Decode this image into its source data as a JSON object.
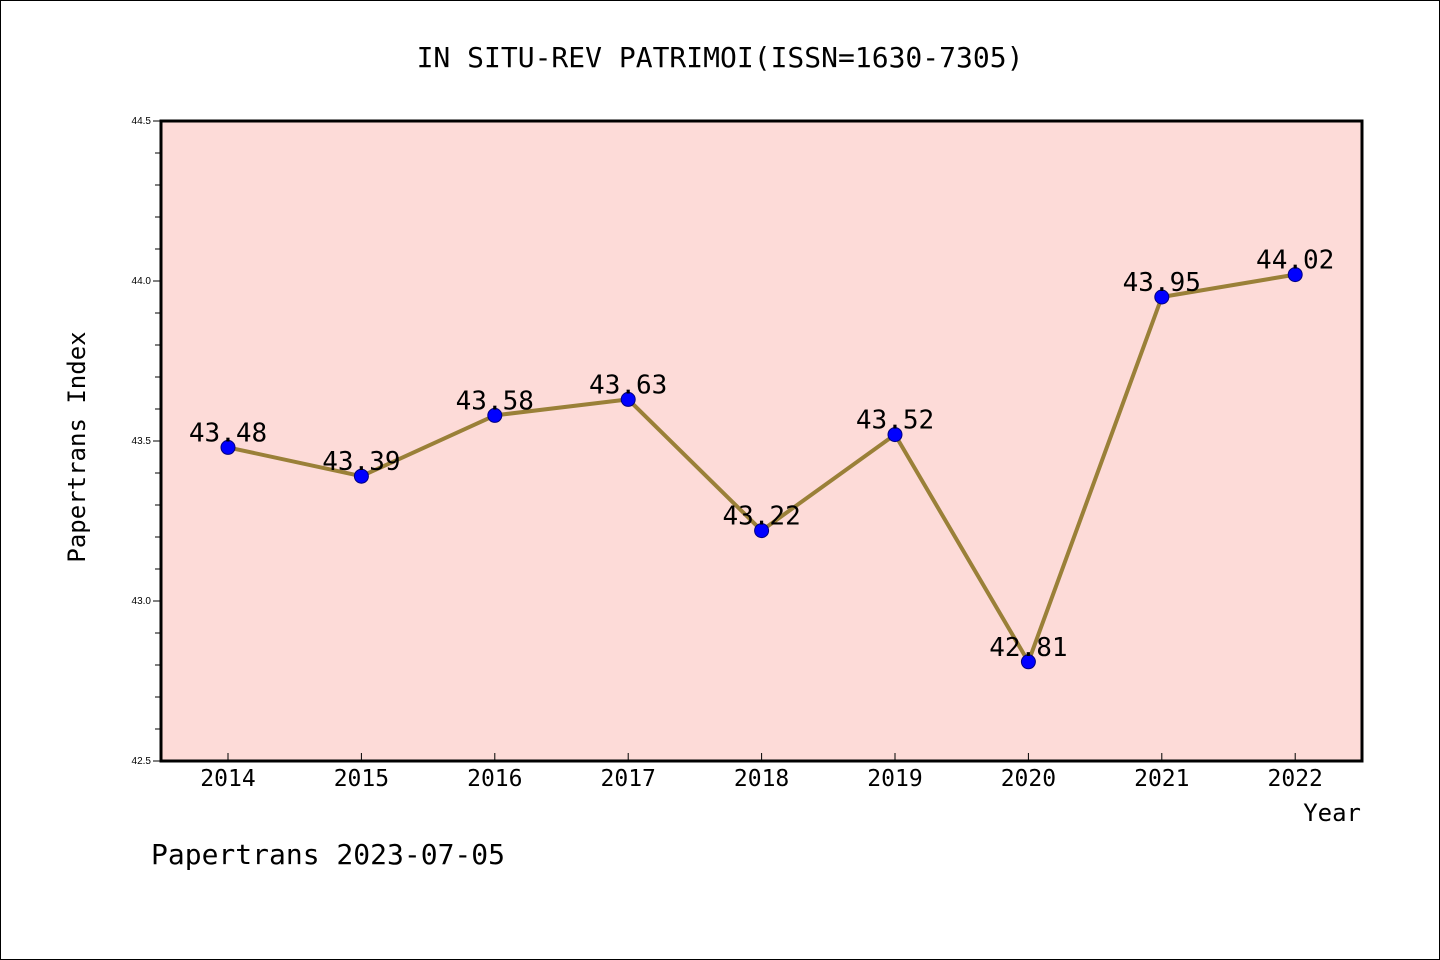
{
  "chart_data": {
    "type": "line",
    "title": "IN SITU-REV PATRIMOI(ISSN=1630-7305)",
    "xlabel": "Year",
    "ylabel": "Papertrans Index",
    "categories": [
      "2014",
      "2015",
      "2016",
      "2017",
      "2018",
      "2019",
      "2020",
      "2021",
      "2022"
    ],
    "values": [
      43.48,
      43.39,
      43.58,
      43.63,
      43.22,
      43.52,
      42.81,
      43.95,
      44.02
    ],
    "data_labels": [
      "43.48",
      "43.39",
      "43.58",
      "43.63",
      "43.22",
      "43.52",
      "42.81",
      "43.95",
      "44.02"
    ],
    "ylim": [
      42.5,
      44.5
    ],
    "yticks": [
      "42.5",
      "43.0",
      "43.5",
      "44.0",
      "44.5"
    ],
    "grid": false,
    "footer": "Papertrans 2023-07-05",
    "colors": {
      "plot_background": "#fddbd8",
      "line": "#9a8038",
      "marker_fill": "#0000ff",
      "marker_edge": "#000080"
    }
  }
}
